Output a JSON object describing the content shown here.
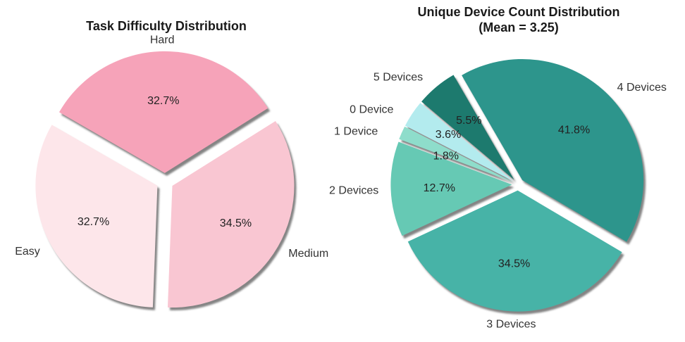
{
  "chart_data": [
    {
      "type": "pie",
      "title": "Task Difficulty Distribution",
      "subtitle": "",
      "start_angle_deg": 150,
      "explode": 0.07,
      "shadow": true,
      "slices": [
        {
          "label": "Easy",
          "value": 32.7,
          "pct_text": "32.7%",
          "color": "#FDE6EA"
        },
        {
          "label": "Medium",
          "value": 34.5,
          "pct_text": "34.5%",
          "color": "#F9C6D2"
        },
        {
          "label": "Hard",
          "value": 32.7,
          "pct_text": "32.7%",
          "color": "#F6A3B9"
        }
      ]
    },
    {
      "type": "pie",
      "title": "Unique Device Count Distribution",
      "subtitle": "(Mean = 3.25)",
      "start_angle_deg": 120,
      "explode": 0.05,
      "shadow": true,
      "slices": [
        {
          "label": "5 Devices",
          "value": 5.5,
          "pct_text": "5.5%",
          "color": "#1D7A6E"
        },
        {
          "label": "0 Device",
          "value": 3.6,
          "pct_text": "3.6%",
          "color": "#B3EBEE"
        },
        {
          "label": "1 Device",
          "value": 1.8,
          "pct_text": "1.8%",
          "color": "#8EDDCB"
        },
        {
          "label": "2 Devices",
          "value": 12.7,
          "pct_text": "12.7%",
          "color": "#66C9B4"
        },
        {
          "label": "3 Devices",
          "value": 34.5,
          "pct_text": "34.5%",
          "color": "#47B3A7"
        },
        {
          "label": "4 Devices",
          "value": 41.8,
          "pct_text": "41.8%",
          "color": "#2D958C"
        }
      ]
    }
  ]
}
